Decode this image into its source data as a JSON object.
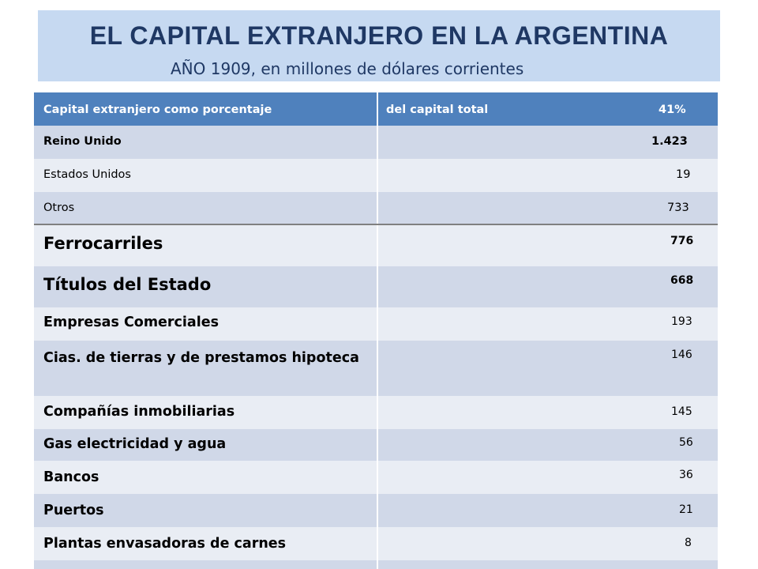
{
  "title": "EL CAPITAL EXTRANJERO EN LA ARGENTINA",
  "subtitle": "AÑO 1909, en millones de dólares corrientes",
  "header": {
    "col1": "Capital extranjero como porcentaje",
    "col2": "del capital total",
    "percent": "41%"
  },
  "origin_rows": [
    {
      "label": "Reino Unido",
      "value": "1.423"
    },
    {
      "label": "Estados Unidos",
      "value": "19"
    },
    {
      "label": "Otros",
      "value": "733"
    }
  ],
  "sector_rows": [
    {
      "label": "Ferrocarriles",
      "value": "776"
    },
    {
      "label": "Títulos del Estado",
      "value": "668"
    },
    {
      "label": "Empresas Comerciales",
      "value": "193"
    },
    {
      "label": "Cias. de tierras y de prestamos hipoteca",
      "value": "146"
    },
    {
      "label": "Compañías inmobiliarias",
      "value": "145"
    },
    {
      "label": "Gas electricidad  y agua",
      "value": "56"
    },
    {
      "label": "Bancos",
      "value": "36"
    },
    {
      "label": "Puertos",
      "value": "21"
    },
    {
      "label": "Plantas envasadoras de carnes",
      "value": "8"
    }
  ]
}
